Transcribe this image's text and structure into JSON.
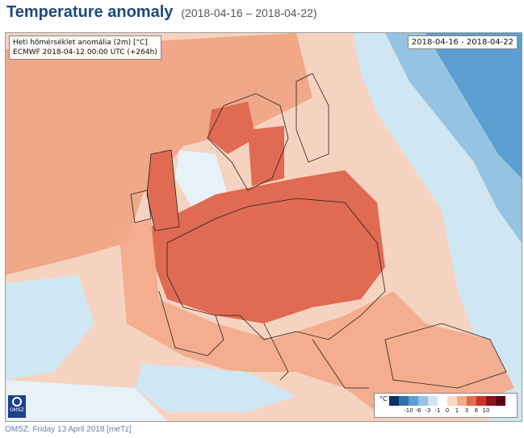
{
  "header": {
    "title": "Temperature anomaly",
    "date_range": "(2018-04-16 – 2018-04-22)"
  },
  "map": {
    "info_line1": "Heti hőmérséklet anomália (2m) [°C]",
    "info_line2": "ECMWF 2018-04-12 00:00 UTC (+264h)",
    "date_box": "2018-04-16 - 2018-04-22",
    "logo_text": "OMSZ",
    "legend": {
      "unit": "°C",
      "colors": [
        "#08306b",
        "#2f6fb0",
        "#5b9fd0",
        "#94c4e2",
        "#cfe6f3",
        "#ffffff",
        "#fbd9c6",
        "#f4a98a",
        "#e06a52",
        "#c8342a",
        "#8e1220",
        "#5a0010"
      ],
      "labels": [
        "-10",
        "-6",
        "-3",
        "-1",
        "0",
        "1",
        "3",
        "6",
        "10"
      ]
    }
  },
  "footer": {
    "text": "OMSZ: Friday 13 April 2018 [meTz]"
  }
}
